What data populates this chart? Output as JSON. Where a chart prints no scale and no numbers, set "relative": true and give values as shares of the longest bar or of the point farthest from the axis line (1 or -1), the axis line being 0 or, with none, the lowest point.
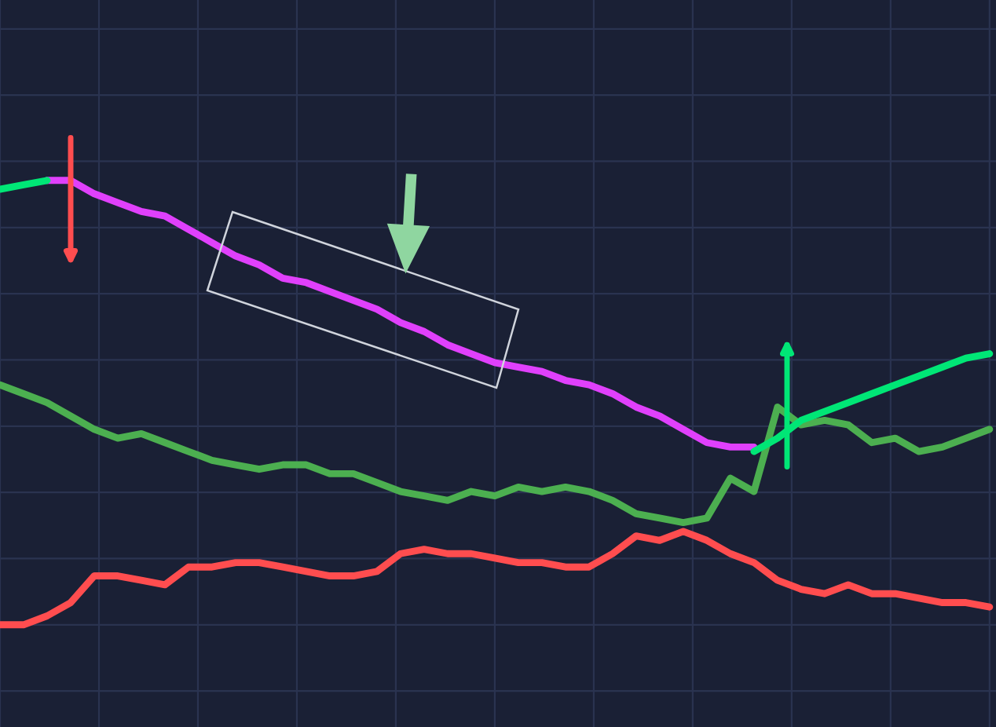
{
  "chart_data": {
    "type": "line",
    "relative": true,
    "grid": true,
    "categories": [
      null,
      null,
      null,
      null,
      null,
      null,
      null,
      null,
      null,
      null,
      null,
      null,
      null,
      null,
      null,
      null,
      null,
      null,
      null,
      null,
      null,
      null,
      null,
      null,
      null,
      null,
      null,
      null,
      null,
      null,
      null,
      null,
      null,
      null,
      null,
      null,
      null,
      null,
      null,
      null,
      null,
      null,
      null
    ],
    "series": [
      {
        "color": "#4caf50",
        "values": [
          0.54,
          0.52,
          0.5,
          0.47,
          0.44,
          0.42,
          0.43,
          0.41,
          0.39,
          0.37,
          0.36,
          0.35,
          0.36,
          0.36,
          0.34,
          0.34,
          0.32,
          0.3,
          0.29,
          0.28,
          0.3,
          0.29,
          0.31,
          0.3,
          0.31,
          0.3,
          0.28,
          0.25,
          0.24,
          0.23,
          0.24,
          0.33,
          0.3,
          0.49,
          0.45,
          0.46,
          0.45,
          0.41,
          0.42,
          0.39,
          0.4,
          0.42,
          0.44
        ]
      },
      {
        "color": "#ff4d4f",
        "values": [
          0,
          0,
          0.02,
          0.05,
          0.11,
          0.11,
          0.1,
          0.09,
          0.13,
          0.13,
          0.14,
          0.14,
          0.13,
          0.12,
          0.11,
          0.11,
          0.12,
          0.16,
          0.17,
          0.16,
          0.16,
          0.15,
          0.14,
          0.14,
          0.13,
          0.13,
          0.16,
          0.2,
          0.19,
          0.21,
          0.19,
          0.16,
          0.14,
          0.1,
          0.08,
          0.07,
          0.09,
          0.07,
          0.07,
          0.06,
          0.05,
          0.05,
          0.04
        ]
      },
      {
        "color": "#e040fb",
        "values": [
          null,
          null,
          1.0,
          1.0,
          0.97,
          0.95,
          0.93,
          0.92,
          0.89,
          0.86,
          0.83,
          0.81,
          0.78,
          0.77,
          0.75,
          0.73,
          0.71,
          0.68,
          0.66,
          0.63,
          0.61,
          0.59,
          0.58,
          0.57,
          0.55,
          0.54,
          0.52,
          0.49,
          0.47,
          0.44,
          0.41,
          0.4,
          0.4,
          null,
          null,
          null,
          null,
          null,
          null,
          null,
          null,
          null,
          null
        ]
      },
      {
        "color": "#00e676",
        "values": [
          0.98,
          0.99,
          1.0,
          null,
          null,
          null,
          null,
          null,
          null,
          null,
          null,
          null,
          null,
          null,
          null,
          null,
          null,
          null,
          null,
          null,
          null,
          null,
          null,
          null,
          null,
          null,
          null,
          null,
          null,
          null,
          null,
          null,
          0.39,
          0.42,
          0.46,
          0.48,
          0.5,
          0.52,
          0.54,
          0.56,
          0.58,
          0.6,
          0.61
        ]
      }
    ]
  }
}
